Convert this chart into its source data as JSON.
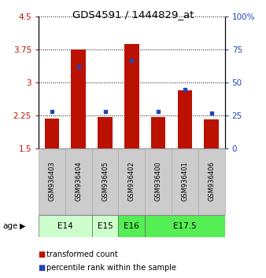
{
  "title": "GDS4591 / 1444829_at",
  "samples": [
    "GSM936403",
    "GSM936404",
    "GSM936405",
    "GSM936402",
    "GSM936400",
    "GSM936401",
    "GSM936406"
  ],
  "transformed_counts": [
    2.18,
    3.76,
    2.22,
    3.88,
    2.22,
    2.83,
    2.17
  ],
  "percentile_ranks": [
    28,
    62,
    28,
    67,
    28,
    45,
    27
  ],
  "ylim_left": [
    1.5,
    4.5
  ],
  "ylim_right": [
    0,
    100
  ],
  "yticks_left": [
    1.5,
    2.25,
    3.0,
    3.75,
    4.5
  ],
  "yticks_right": [
    0,
    25,
    50,
    75,
    100
  ],
  "ytick_labels_left": [
    "1.5",
    "2.25",
    "3",
    "3.75",
    "4.5"
  ],
  "ytick_labels_right": [
    "0",
    "25",
    "50",
    "75",
    "100%"
  ],
  "bar_color": "#bb1100",
  "dot_color": "#2244bb",
  "age_info": [
    {
      "label": "E14",
      "start": 0,
      "end": 2,
      "color": "#ccffcc"
    },
    {
      "label": "E15",
      "start": 2,
      "end": 3,
      "color": "#ccffcc"
    },
    {
      "label": "E16",
      "start": 3,
      "end": 4,
      "color": "#55ee55"
    },
    {
      "label": "E17.5",
      "start": 4,
      "end": 7,
      "color": "#55ee55"
    }
  ],
  "label_bg_color": "#cccccc",
  "legend_red_label": "transformed count",
  "legend_blue_label": "percentile rank within the sample"
}
